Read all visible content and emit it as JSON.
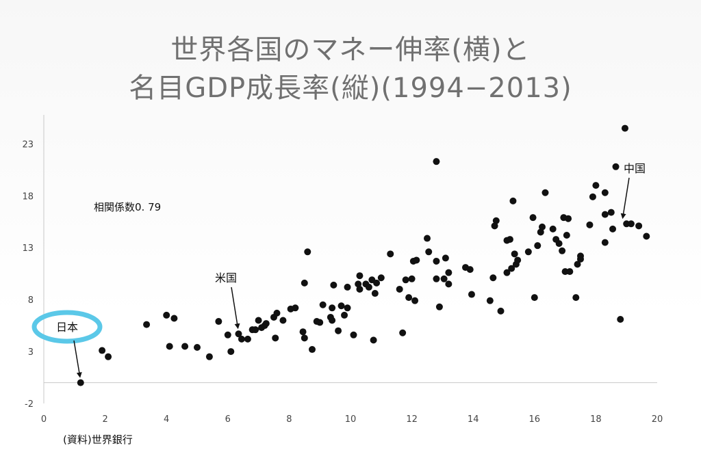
{
  "title_line1": "世界各国のマネー伸率(横)と",
  "title_line2": "名目GDP成長率(縦)(1994−2013)",
  "source": "(資料)世界銀行",
  "colors": {
    "points": "#111111",
    "highlight": "#5bc8e8",
    "axis": "#c8c8c8"
  },
  "chart_data": {
    "type": "scatter",
    "title": "世界各国のマネー伸率(横)と名目GDP成長率(縦)(1994−2013)",
    "xlabel": "",
    "ylabel": "",
    "xlim": [
      0,
      20
    ],
    "ylim": [
      -2,
      25
    ],
    "xticks": [
      "0",
      "2",
      "4",
      "6",
      "8",
      "10",
      "12",
      "14",
      "16",
      "18",
      "20"
    ],
    "yticks": [
      "-2",
      "3",
      "8",
      "13",
      "18",
      "23"
    ],
    "grid": false,
    "correlation_label": "相関係数0. 79",
    "annotations": [
      {
        "text": "日本",
        "point": [
          1.2,
          0.0
        ],
        "highlighted": true
      },
      {
        "text": "米国",
        "point": [
          6.35,
          4.7
        ]
      },
      {
        "text": "中国",
        "point": [
          18.9,
          15.3
        ]
      }
    ],
    "points": [
      [
        1.2,
        0.0
      ],
      [
        1.9,
        3.1
      ],
      [
        2.1,
        2.5
      ],
      [
        3.35,
        5.6
      ],
      [
        4.0,
        6.5
      ],
      [
        4.1,
        3.5
      ],
      [
        4.25,
        6.2
      ],
      [
        4.6,
        3.5
      ],
      [
        5.0,
        3.4
      ],
      [
        5.4,
        2.5
      ],
      [
        5.7,
        5.9
      ],
      [
        6.0,
        4.6
      ],
      [
        6.1,
        3.0
      ],
      [
        6.35,
        4.7
      ],
      [
        6.45,
        4.2
      ],
      [
        6.65,
        4.2
      ],
      [
        6.8,
        5.1
      ],
      [
        6.9,
        5.1
      ],
      [
        7.0,
        6.0
      ],
      [
        7.1,
        5.3
      ],
      [
        7.2,
        5.5
      ],
      [
        7.25,
        5.7
      ],
      [
        7.5,
        6.3
      ],
      [
        7.55,
        4.3
      ],
      [
        7.6,
        6.7
      ],
      [
        7.8,
        6.0
      ],
      [
        8.05,
        7.1
      ],
      [
        8.2,
        7.2
      ],
      [
        8.45,
        4.9
      ],
      [
        8.5,
        4.3
      ],
      [
        8.5,
        9.6
      ],
      [
        8.6,
        12.6
      ],
      [
        8.75,
        3.2
      ],
      [
        8.9,
        5.9
      ],
      [
        9.0,
        5.8
      ],
      [
        9.1,
        7.5
      ],
      [
        9.35,
        6.3
      ],
      [
        9.4,
        6.0
      ],
      [
        9.4,
        7.2
      ],
      [
        9.45,
        9.4
      ],
      [
        9.6,
        5.0
      ],
      [
        9.7,
        7.4
      ],
      [
        9.8,
        6.5
      ],
      [
        9.9,
        7.2
      ],
      [
        9.9,
        9.2
      ],
      [
        10.1,
        4.6
      ],
      [
        10.25,
        9.5
      ],
      [
        10.3,
        9.0
      ],
      [
        10.3,
        10.3
      ],
      [
        10.5,
        9.5
      ],
      [
        10.6,
        9.2
      ],
      [
        10.7,
        9.9
      ],
      [
        10.75,
        4.1
      ],
      [
        10.8,
        8.6
      ],
      [
        10.85,
        9.6
      ],
      [
        11.0,
        10.1
      ],
      [
        11.3,
        12.4
      ],
      [
        11.6,
        9.0
      ],
      [
        11.7,
        4.8
      ],
      [
        11.8,
        9.9
      ],
      [
        11.9,
        8.2
      ],
      [
        12.0,
        10.0
      ],
      [
        12.05,
        11.7
      ],
      [
        12.1,
        7.9
      ],
      [
        12.15,
        11.8
      ],
      [
        12.5,
        13.9
      ],
      [
        12.55,
        12.6
      ],
      [
        12.8,
        11.7
      ],
      [
        12.8,
        10.0
      ],
      [
        12.8,
        21.3
      ],
      [
        12.9,
        7.3
      ],
      [
        13.05,
        10.0
      ],
      [
        13.1,
        12.0
      ],
      [
        13.2,
        10.6
      ],
      [
        13.2,
        9.5
      ],
      [
        13.75,
        11.1
      ],
      [
        13.9,
        10.9
      ],
      [
        13.95,
        8.5
      ],
      [
        14.55,
        7.9
      ],
      [
        14.65,
        10.1
      ],
      [
        14.7,
        15.1
      ],
      [
        14.75,
        15.6
      ],
      [
        14.9,
        6.9
      ],
      [
        15.1,
        13.7
      ],
      [
        15.1,
        10.6
      ],
      [
        15.2,
        13.8
      ],
      [
        15.25,
        11.0
      ],
      [
        15.3,
        17.5
      ],
      [
        15.35,
        12.4
      ],
      [
        15.4,
        11.4
      ],
      [
        15.45,
        11.8
      ],
      [
        15.8,
        12.6
      ],
      [
        15.95,
        15.9
      ],
      [
        16.0,
        8.2
      ],
      [
        16.1,
        13.2
      ],
      [
        16.2,
        14.5
      ],
      [
        16.25,
        15.0
      ],
      [
        16.35,
        18.3
      ],
      [
        16.6,
        14.8
      ],
      [
        16.7,
        13.8
      ],
      [
        16.8,
        13.4
      ],
      [
        16.9,
        12.7
      ],
      [
        16.95,
        15.9
      ],
      [
        17.0,
        10.7
      ],
      [
        17.05,
        14.2
      ],
      [
        17.1,
        15.8
      ],
      [
        17.15,
        10.7
      ],
      [
        17.35,
        8.2
      ],
      [
        17.4,
        11.4
      ],
      [
        17.5,
        12.2
      ],
      [
        17.5,
        11.9
      ],
      [
        17.8,
        15.2
      ],
      [
        17.9,
        17.9
      ],
      [
        18.0,
        19.0
      ],
      [
        18.3,
        18.3
      ],
      [
        18.3,
        16.2
      ],
      [
        18.3,
        13.5
      ],
      [
        18.5,
        16.4
      ],
      [
        18.55,
        14.8
      ],
      [
        18.65,
        20.8
      ],
      [
        18.8,
        6.1
      ],
      [
        18.95,
        24.5
      ],
      [
        19.0,
        15.3
      ],
      [
        19.15,
        15.3
      ],
      [
        19.4,
        15.1
      ],
      [
        19.65,
        14.1
      ]
    ]
  }
}
